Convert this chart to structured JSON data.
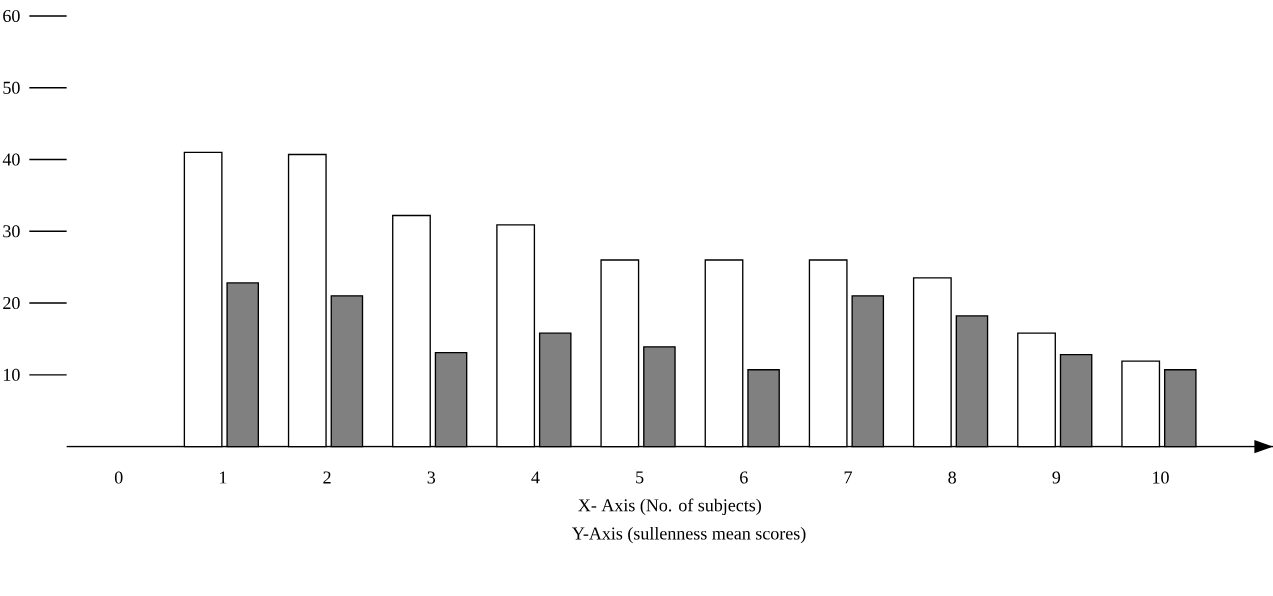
{
  "chart_data": {
    "type": "bar",
    "xlabel": "X- Axis (No. of subjects)",
    "annotations": [
      "Y-Axis (sullenness mean scores)"
    ],
    "categories": [
      "0",
      "1",
      "2",
      "3",
      "4",
      "5",
      "6",
      "7",
      "8",
      "9",
      "10"
    ],
    "series": [
      {
        "color": "#ffffff",
        "values": [
          null,
          41.0,
          40.7,
          32.2,
          30.9,
          26.0,
          26.0,
          26.0,
          23.5,
          15.8,
          11.9
        ]
      },
      {
        "color": "#808080",
        "values": [
          null,
          22.8,
          21.0,
          13.1,
          15.8,
          13.9,
          10.7,
          21.0,
          18.2,
          12.8,
          10.7
        ]
      }
    ],
    "ylim": [
      0,
      60
    ],
    "yticks": [
      10,
      20,
      30,
      40,
      50,
      60
    ]
  }
}
